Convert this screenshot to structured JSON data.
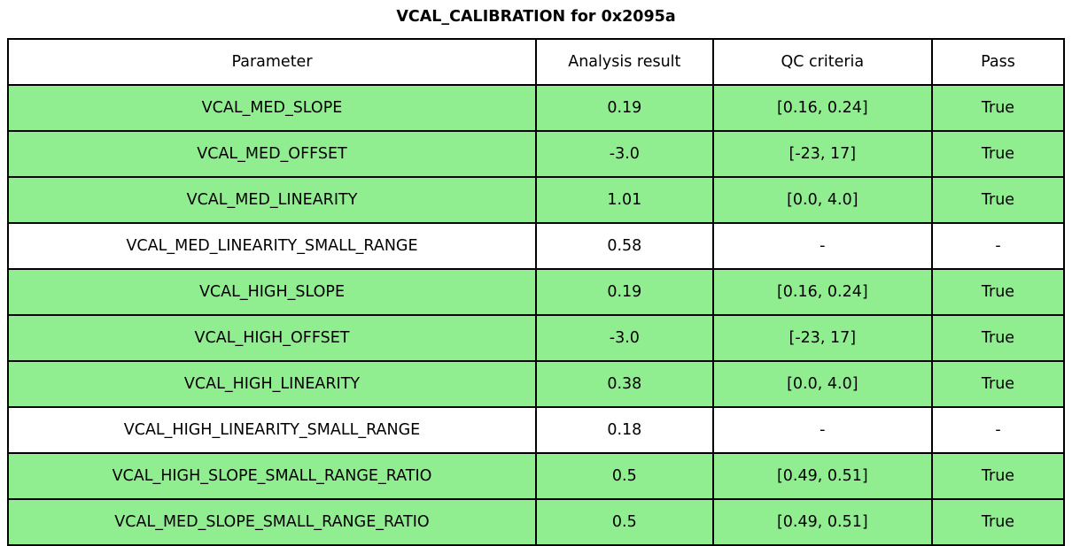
{
  "title": "VCAL_CALIBRATION for 0x2095a",
  "colors": {
    "row_highlight": "#90EE90",
    "row_plain": "#FFFFFF",
    "border": "#000000",
    "text": "#000000",
    "background": "#FFFFFF"
  },
  "chart_data": {
    "type": "table",
    "title": "VCAL_CALIBRATION for 0x2095a",
    "columns": [
      "Parameter",
      "Analysis result",
      "QC criteria",
      "Pass"
    ],
    "row_highlight_color": "#90EE90",
    "rows": [
      {
        "cells": [
          "VCAL_MED_SLOPE",
          "0.19",
          "[0.16, 0.24]",
          "True"
        ],
        "pass": true
      },
      {
        "cells": [
          "VCAL_MED_OFFSET",
          "-3.0",
          "[-23, 17]",
          "True"
        ],
        "pass": true
      },
      {
        "cells": [
          "VCAL_MED_LINEARITY",
          "1.01",
          "[0.0, 4.0]",
          "True"
        ],
        "pass": true
      },
      {
        "cells": [
          "VCAL_MED_LINEARITY_SMALL_RANGE",
          "0.58",
          "-",
          "-"
        ],
        "pass": false
      },
      {
        "cells": [
          "VCAL_HIGH_SLOPE",
          "0.19",
          "[0.16, 0.24]",
          "True"
        ],
        "pass": true
      },
      {
        "cells": [
          "VCAL_HIGH_OFFSET",
          "-3.0",
          "[-23, 17]",
          "True"
        ],
        "pass": true
      },
      {
        "cells": [
          "VCAL_HIGH_LINEARITY",
          "0.38",
          "[0.0, 4.0]",
          "True"
        ],
        "pass": true
      },
      {
        "cells": [
          "VCAL_HIGH_LINEARITY_SMALL_RANGE",
          "0.18",
          "-",
          "-"
        ],
        "pass": false
      },
      {
        "cells": [
          "VCAL_HIGH_SLOPE_SMALL_RANGE_RATIO",
          "0.5",
          "[0.49, 0.51]",
          "True"
        ],
        "pass": true
      },
      {
        "cells": [
          "VCAL_MED_SLOPE_SMALL_RANGE_RATIO",
          "0.5",
          "[0.49, 0.51]",
          "True"
        ],
        "pass": true
      }
    ]
  }
}
